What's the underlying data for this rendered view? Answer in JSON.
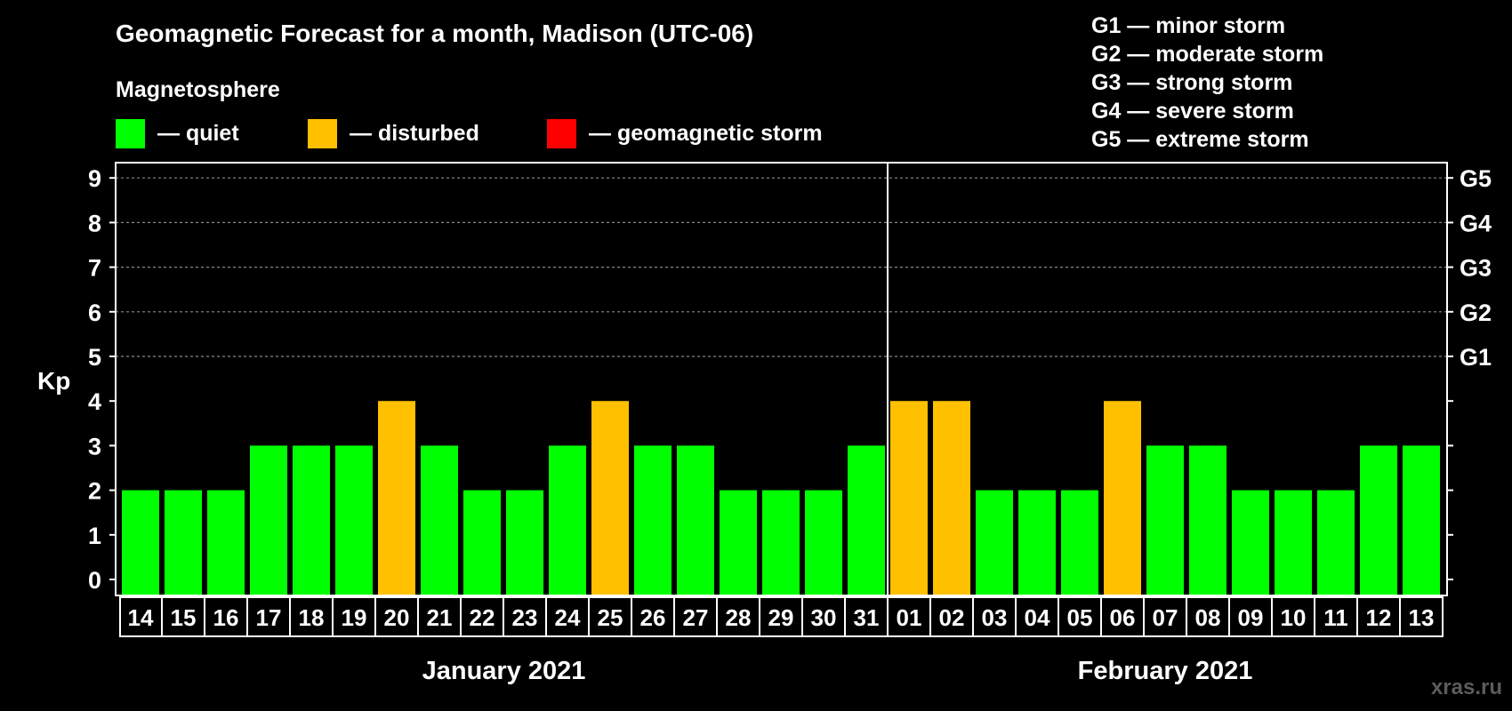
{
  "chart_data": {
    "type": "bar",
    "title": "Geomagnetic Forecast for a month, Madison (UTC-06)",
    "ylabel": "Kp",
    "ylim": [
      0,
      9
    ],
    "yticks": [
      "0",
      "1",
      "2",
      "3",
      "4",
      "5",
      "6",
      "7",
      "8",
      "9"
    ],
    "storm_scale": [
      {
        "level": "G1",
        "kp": 5,
        "description": "G1 — minor storm"
      },
      {
        "level": "G2",
        "kp": 6,
        "description": "G2 — moderate storm"
      },
      {
        "level": "G3",
        "kp": 7,
        "description": "G3 — strong storm"
      },
      {
        "level": "G4",
        "kp": 8,
        "description": "G4 — severe storm"
      },
      {
        "level": "G5",
        "kp": 9,
        "description": "G5 — extreme storm"
      }
    ],
    "legend": {
      "heading": "Magnetosphere",
      "items": [
        {
          "label": "— quiet",
          "color": "#00ff00",
          "state": "quiet"
        },
        {
          "label": "— disturbed",
          "color": "#ffc000",
          "state": "disturbed"
        },
        {
          "label": "— geomagnetic storm",
          "color": "#ff0000",
          "state": "storm"
        }
      ]
    },
    "months": [
      {
        "label": "January 2021",
        "start_index": 0,
        "end_index": 17
      },
      {
        "label": "February 2021",
        "start_index": 18,
        "end_index": 30
      }
    ],
    "categories": [
      "14",
      "15",
      "16",
      "17",
      "18",
      "19",
      "20",
      "21",
      "22",
      "23",
      "24",
      "25",
      "26",
      "27",
      "28",
      "29",
      "30",
      "31",
      "01",
      "02",
      "03",
      "04",
      "05",
      "06",
      "07",
      "08",
      "09",
      "10",
      "11",
      "12",
      "13"
    ],
    "values": [
      2,
      2,
      2,
      3,
      3,
      3,
      4,
      3,
      2,
      2,
      3,
      4,
      3,
      3,
      2,
      2,
      2,
      3,
      4,
      4,
      2,
      2,
      2,
      4,
      3,
      3,
      2,
      2,
      2,
      3,
      3
    ],
    "states": [
      "quiet",
      "quiet",
      "quiet",
      "quiet",
      "quiet",
      "quiet",
      "disturbed",
      "quiet",
      "quiet",
      "quiet",
      "quiet",
      "disturbed",
      "quiet",
      "quiet",
      "quiet",
      "quiet",
      "quiet",
      "quiet",
      "disturbed",
      "disturbed",
      "quiet",
      "quiet",
      "quiet",
      "disturbed",
      "quiet",
      "quiet",
      "quiet",
      "quiet",
      "quiet",
      "quiet",
      "quiet"
    ]
  },
  "watermark": "xras.ru"
}
